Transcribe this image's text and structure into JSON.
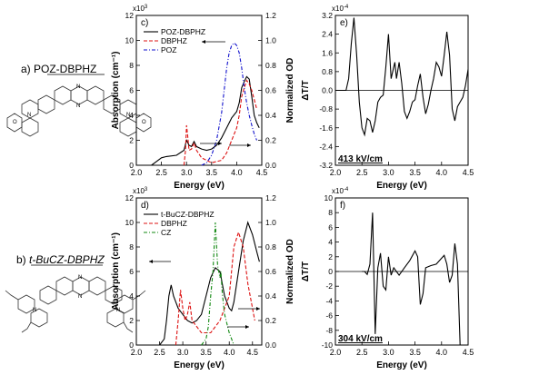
{
  "left_labels": {
    "a": "a) POZ-DBPHZ",
    "b_prefix": "b) ",
    "b_name": "t-BuCZ-DBPHZ"
  },
  "chart_data": [
    {
      "id": "c",
      "type": "line",
      "panel_label": "c)",
      "xlabel": "Energy (eV)",
      "ylabel": "Absorption (cm⁻¹)",
      "y2label": "Normalized OD",
      "xlim": [
        2.0,
        4.5
      ],
      "ylim": [
        0,
        12
      ],
      "y2lim": [
        0,
        1.2
      ],
      "xticks": [
        "2.0",
        "2.5",
        "3.0",
        "3.5",
        "4.0",
        "4.5"
      ],
      "yticks": [
        "0",
        "2",
        "4",
        "6",
        "8",
        "10",
        "12"
      ],
      "y2ticks": [
        "0.0",
        "0.2",
        "0.4",
        "0.6",
        "0.8",
        "1.0",
        "1.2"
      ],
      "exponent": "x10",
      "exponent_sup": "3",
      "legend_position": "top-left",
      "series": [
        {
          "name": "POZ-DBPHZ",
          "color": "#000000",
          "dash": "",
          "axis": "left",
          "points": [
            [
              2.3,
              0
            ],
            [
              2.4,
              0.3
            ],
            [
              2.5,
              0.6
            ],
            [
              2.6,
              0.7
            ],
            [
              2.8,
              0.8
            ],
            [
              2.95,
              1.2
            ],
            [
              3.0,
              2.0
            ],
            [
              3.05,
              1.6
            ],
            [
              3.1,
              1.5
            ],
            [
              3.15,
              1.9
            ],
            [
              3.2,
              1.5
            ],
            [
              3.3,
              1.3
            ],
            [
              3.4,
              1.2
            ],
            [
              3.5,
              1.3
            ],
            [
              3.6,
              1.6
            ],
            [
              3.7,
              2.2
            ],
            [
              3.8,
              3.0
            ],
            [
              3.9,
              3.8
            ],
            [
              4.0,
              4.3
            ],
            [
              4.05,
              5.0
            ],
            [
              4.1,
              6.2
            ],
            [
              4.15,
              6.7
            ],
            [
              4.2,
              7.1
            ],
            [
              4.25,
              6.9
            ],
            [
              4.3,
              5.5
            ],
            [
              4.35,
              4.0
            ],
            [
              4.4,
              3.4
            ],
            [
              4.45,
              3.0
            ]
          ]
        },
        {
          "name": "DBPHZ",
          "color": "#dd1111",
          "dash": "4,2",
          "axis": "right",
          "points": [
            [
              2.95,
              0
            ],
            [
              2.98,
              0.12
            ],
            [
              3.0,
              0.32
            ],
            [
              3.02,
              0.25
            ],
            [
              3.05,
              0.12
            ],
            [
              3.1,
              0.13
            ],
            [
              3.15,
              0.18
            ],
            [
              3.2,
              0.12
            ],
            [
              3.3,
              0.06
            ],
            [
              3.5,
              0.02
            ],
            [
              3.7,
              0.04
            ],
            [
              3.8,
              0.1
            ],
            [
              3.9,
              0.2
            ],
            [
              4.0,
              0.3
            ],
            [
              4.05,
              0.4
            ],
            [
              4.1,
              0.55
            ],
            [
              4.15,
              0.62
            ],
            [
              4.2,
              0.68
            ],
            [
              4.25,
              0.65
            ],
            [
              4.3,
              0.6
            ],
            [
              4.4,
              0.45
            ]
          ]
        },
        {
          "name": "POZ",
          "color": "#1111cc",
          "dash": "4,2,1,2",
          "axis": "right",
          "points": [
            [
              3.3,
              0
            ],
            [
              3.4,
              0.02
            ],
            [
              3.5,
              0.08
            ],
            [
              3.6,
              0.2
            ],
            [
              3.7,
              0.42
            ],
            [
              3.75,
              0.6
            ],
            [
              3.8,
              0.78
            ],
            [
              3.85,
              0.9
            ],
            [
              3.9,
              0.96
            ],
            [
              3.95,
              0.98
            ],
            [
              4.0,
              0.96
            ],
            [
              4.05,
              0.9
            ],
            [
              4.1,
              0.78
            ],
            [
              4.15,
              0.62
            ],
            [
              4.2,
              0.5
            ],
            [
              4.25,
              0.4
            ],
            [
              4.3,
              0.32
            ],
            [
              4.35,
              0.25
            ],
            [
              4.4,
              0.2
            ]
          ]
        }
      ]
    },
    {
      "id": "e",
      "type": "line",
      "panel_label": "e)",
      "xlabel": "Energy (eV)",
      "ylabel": "ΔT/T",
      "xlim": [
        2.0,
        4.5
      ],
      "ylim": [
        -3.2,
        3.2
      ],
      "xticks": [
        "2.0",
        "2.5",
        "3.0",
        "3.5",
        "4.0",
        "4.5"
      ],
      "yticks": [
        "-3.2",
        "-2.4",
        "-1.6",
        "-0.8",
        "0.0",
        "0.8",
        "1.6",
        "2.4",
        "3.2"
      ],
      "exponent": "x10",
      "exponent_sup": "-4",
      "annotation": "413 kV/cm",
      "series": [
        {
          "name": "",
          "color": "#000000",
          "dash": "",
          "points": [
            [
              2.0,
              0
            ],
            [
              2.2,
              0
            ],
            [
              2.25,
              0.5
            ],
            [
              2.3,
              2.0
            ],
            [
              2.35,
              3.1
            ],
            [
              2.4,
              1.5
            ],
            [
              2.45,
              -0.5
            ],
            [
              2.5,
              -1.6
            ],
            [
              2.55,
              -1.9
            ],
            [
              2.6,
              -1.2
            ],
            [
              2.65,
              -1.3
            ],
            [
              2.7,
              -1.8
            ],
            [
              2.75,
              -1.3
            ],
            [
              2.8,
              -0.5
            ],
            [
              2.85,
              -0.3
            ],
            [
              2.9,
              -0.2
            ],
            [
              2.95,
              1.0
            ],
            [
              3.0,
              2.4
            ],
            [
              3.05,
              0.5
            ],
            [
              3.1,
              1.0
            ],
            [
              3.12,
              1.2
            ],
            [
              3.15,
              0.5
            ],
            [
              3.2,
              1.2
            ],
            [
              3.25,
              0.3
            ],
            [
              3.3,
              -0.9
            ],
            [
              3.35,
              -1.2
            ],
            [
              3.4,
              -0.9
            ],
            [
              3.45,
              -0.5
            ],
            [
              3.5,
              -0.4
            ],
            [
              3.55,
              0.2
            ],
            [
              3.6,
              0.7
            ],
            [
              3.65,
              -0.3
            ],
            [
              3.7,
              -1.0
            ],
            [
              3.75,
              -0.6
            ],
            [
              3.8,
              0.0
            ],
            [
              3.85,
              0.5
            ],
            [
              3.9,
              1.2
            ],
            [
              3.95,
              1.0
            ],
            [
              4.0,
              0.6
            ],
            [
              4.05,
              1.5
            ],
            [
              4.1,
              2.5
            ],
            [
              4.15,
              1.5
            ],
            [
              4.2,
              -0.8
            ],
            [
              4.25,
              -1.3
            ],
            [
              4.3,
              -0.7
            ],
            [
              4.35,
              -0.5
            ],
            [
              4.4,
              -0.3
            ],
            [
              4.45,
              0.2
            ],
            [
              4.5,
              0.9
            ]
          ]
        }
      ]
    },
    {
      "id": "d",
      "type": "line",
      "panel_label": "d)",
      "xlabel": "Energy (eV)",
      "ylabel": "Absorption (cm⁻¹)",
      "y2label": "Normalized OD",
      "xlim": [
        2.0,
        4.7
      ],
      "ylim": [
        0,
        12
      ],
      "y2lim": [
        0,
        1.2
      ],
      "xticks": [
        "2.0",
        "2.5",
        "3.0",
        "3.5",
        "4.0",
        "4.5"
      ],
      "yticks": [
        "0",
        "2",
        "4",
        "6",
        "8",
        "10",
        "12"
      ],
      "y2ticks": [
        "0.0",
        "0.2",
        "0.4",
        "0.6",
        "0.8",
        "1.0",
        "1.2"
      ],
      "exponent": "x10",
      "exponent_sup": "3",
      "legend_position": "top-left",
      "series": [
        {
          "name": "t-BuCZ-DBPHZ",
          "color": "#000000",
          "dash": "",
          "axis": "left",
          "points": [
            [
              2.5,
              0
            ],
            [
              2.6,
              0.5
            ],
            [
              2.65,
              2.0
            ],
            [
              2.7,
              4.0
            ],
            [
              2.75,
              4.9
            ],
            [
              2.8,
              4.0
            ],
            [
              2.9,
              3.0
            ],
            [
              3.0,
              2.5
            ],
            [
              3.1,
              2.0
            ],
            [
              3.2,
              1.8
            ],
            [
              3.3,
              2.0
            ],
            [
              3.4,
              2.5
            ],
            [
              3.5,
              4.0
            ],
            [
              3.6,
              5.5
            ],
            [
              3.7,
              6.3
            ],
            [
              3.8,
              6.0
            ],
            [
              3.9,
              4.0
            ],
            [
              4.0,
              3.0
            ],
            [
              4.05,
              2.8
            ],
            [
              4.1,
              3.5
            ],
            [
              4.2,
              6.0
            ],
            [
              4.3,
              8.5
            ],
            [
              4.4,
              10.0
            ],
            [
              4.5,
              9.0
            ],
            [
              4.6,
              7.5
            ],
            [
              4.65,
              6.8
            ]
          ]
        },
        {
          "name": "DBPHZ",
          "color": "#dd1111",
          "dash": "4,2",
          "axis": "right",
          "points": [
            [
              2.85,
              0
            ],
            [
              2.9,
              0.2
            ],
            [
              2.95,
              0.45
            ],
            [
              3.0,
              0.3
            ],
            [
              3.05,
              0.2
            ],
            [
              3.1,
              0.25
            ],
            [
              3.15,
              0.35
            ],
            [
              3.2,
              0.2
            ],
            [
              3.4,
              0.1
            ],
            [
              3.6,
              0.1
            ],
            [
              3.8,
              0.2
            ],
            [
              4.0,
              0.4
            ],
            [
              4.1,
              0.8
            ],
            [
              4.2,
              0.92
            ],
            [
              4.3,
              0.8
            ],
            [
              4.4,
              0.5
            ],
            [
              4.5,
              0.3
            ],
            [
              4.55,
              0.2
            ]
          ]
        },
        {
          "name": "CZ",
          "color": "#118811",
          "dash": "4,2,1,2",
          "axis": "right",
          "points": [
            [
              3.4,
              0
            ],
            [
              3.5,
              0.05
            ],
            [
              3.55,
              0.15
            ],
            [
              3.6,
              0.4
            ],
            [
              3.65,
              0.6
            ],
            [
              3.7,
              1.0
            ],
            [
              3.75,
              0.65
            ],
            [
              3.8,
              0.55
            ],
            [
              3.82,
              0.6
            ],
            [
              3.85,
              0.42
            ],
            [
              3.9,
              0.25
            ],
            [
              4.0,
              0.1
            ],
            [
              4.1,
              0.0
            ]
          ]
        }
      ]
    },
    {
      "id": "f",
      "type": "line",
      "panel_label": "f)",
      "xlabel": "Energy (eV)",
      "ylabel": "ΔT/T",
      "xlim": [
        2.0,
        4.5
      ],
      "ylim": [
        -10,
        10
      ],
      "xticks": [
        "2.0",
        "2.5",
        "3.0",
        "3.5",
        "4.0",
        "4.5"
      ],
      "yticks": [
        "-10",
        "-8",
        "-6",
        "-4",
        "-2",
        "0",
        "2",
        "4",
        "6",
        "8",
        "10"
      ],
      "exponent": "x10",
      "exponent_sup": "-4",
      "annotation": "304 kV/cm",
      "series": [
        {
          "name": "",
          "color": "#000000",
          "dash": "",
          "points": [
            [
              2.5,
              0
            ],
            [
              2.55,
              0
            ],
            [
              2.6,
              -0.4
            ],
            [
              2.65,
              1.0
            ],
            [
              2.7,
              8.0
            ],
            [
              2.75,
              -8.5
            ],
            [
              2.8,
              0.5
            ],
            [
              2.85,
              2.5
            ],
            [
              2.9,
              -2.0
            ],
            [
              2.95,
              -2.5
            ],
            [
              3.0,
              2.0
            ],
            [
              3.05,
              -0.5
            ],
            [
              3.1,
              0.5
            ],
            [
              3.2,
              -0.5
            ],
            [
              3.3,
              0.5
            ],
            [
              3.4,
              1.5
            ],
            [
              3.5,
              2.8
            ],
            [
              3.55,
              2.0
            ],
            [
              3.6,
              -4.5
            ],
            [
              3.65,
              -3.0
            ],
            [
              3.7,
              0.5
            ],
            [
              3.8,
              0.8
            ],
            [
              3.9,
              1.0
            ],
            [
              4.0,
              1.8
            ],
            [
              4.05,
              2.2
            ],
            [
              4.1,
              1.0
            ],
            [
              4.15,
              -1.5
            ],
            [
              4.2,
              -0.5
            ],
            [
              4.25,
              3.8
            ],
            [
              4.3,
              1.0
            ],
            [
              4.35,
              -10.0
            ]
          ]
        }
      ]
    }
  ]
}
